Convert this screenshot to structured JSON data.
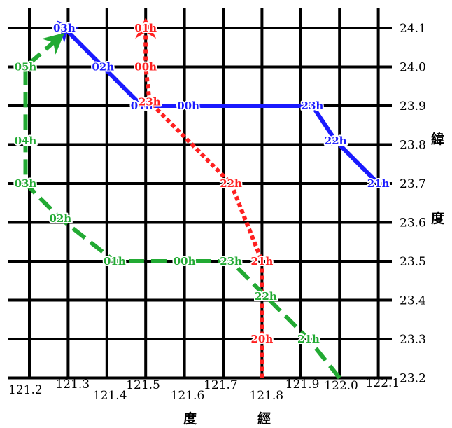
{
  "chart_data": {
    "type": "track_map",
    "x_ticks": [
      "121.2",
      "121.3",
      "121.4",
      "121.5",
      "121.6",
      "121.7",
      "121.8",
      "121.9",
      "122.0",
      "122.1"
    ],
    "y_ticks": [
      "24.1",
      "24.0",
      "23.9",
      "23.8",
      "23.7",
      "23.6",
      "23.5",
      "23.4",
      "23.3",
      "23.2"
    ],
    "x_axis_words": [
      "度",
      "經"
    ],
    "y_axis_words": [
      "緯",
      "度"
    ],
    "tracks": [
      {
        "color": "#1a1aff",
        "style": "solid",
        "points": [
          {
            "lon": 122.1,
            "lat": 23.7,
            "label": "21h"
          },
          {
            "lon": 121.99,
            "lat": 23.81,
            "label": "22h"
          },
          {
            "lon": 121.93,
            "lat": 23.9,
            "label": "23h"
          },
          {
            "lon": 121.61,
            "lat": 23.9,
            "label": "00h"
          },
          {
            "lon": 121.49,
            "lat": 23.9,
            "label": "01h"
          },
          {
            "lon": 121.39,
            "lat": 24.0,
            "label": "02h"
          },
          {
            "lon": 121.29,
            "lat": 24.1,
            "label": "03h"
          }
        ]
      },
      {
        "color": "#ff2020",
        "style": "dashed",
        "points": [
          {
            "lon": 121.8,
            "lat": 23.2,
            "label": ""
          },
          {
            "lon": 121.8,
            "lat": 23.3,
            "label": "20h"
          },
          {
            "lon": 121.8,
            "lat": 23.5,
            "label": "21h"
          },
          {
            "lon": 121.72,
            "lat": 23.7,
            "label": "22h"
          },
          {
            "lon": 121.51,
            "lat": 23.91,
            "label": "23h"
          },
          {
            "lon": 121.5,
            "lat": 24.0,
            "label": "00h"
          },
          {
            "lon": 121.5,
            "lat": 24.1,
            "label": "01h"
          }
        ]
      },
      {
        "color": "#22aa33",
        "style": "dashed",
        "points": [
          {
            "lon": 122.0,
            "lat": 23.2,
            "label": ""
          },
          {
            "lon": 121.92,
            "lat": 23.3,
            "label": "21h"
          },
          {
            "lon": 121.81,
            "lat": 23.41,
            "label": "22h"
          },
          {
            "lon": 121.72,
            "lat": 23.5,
            "label": "23h"
          },
          {
            "lon": 121.6,
            "lat": 23.5,
            "label": "00h"
          },
          {
            "lon": 121.42,
            "lat": 23.5,
            "label": "01h"
          },
          {
            "lon": 121.28,
            "lat": 23.61,
            "label": "02h"
          },
          {
            "lon": 121.19,
            "lat": 23.7,
            "label": "03h"
          },
          {
            "lon": 121.19,
            "lat": 23.81,
            "label": "04h"
          },
          {
            "lon": 121.19,
            "lat": 24.0,
            "label": "05h"
          },
          {
            "lon": 121.27,
            "lat": 24.07,
            "label": ""
          }
        ]
      }
    ]
  }
}
